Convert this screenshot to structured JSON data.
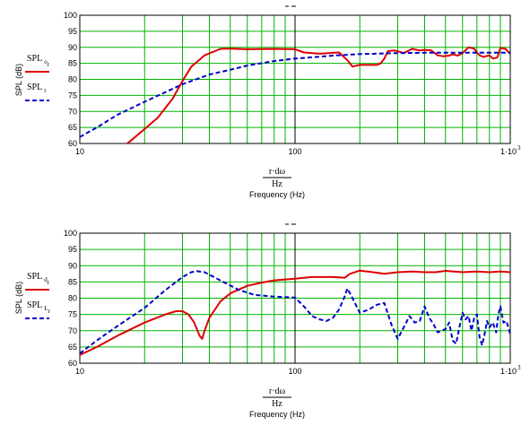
{
  "chart_data": [
    {
      "type": "line",
      "title": "",
      "xlabel": "Frequency (Hz)",
      "xexpr_num": "r·dω",
      "xexpr_den": "Hz",
      "ylabel": "SPL (dB)",
      "xscale": "log",
      "xlim": [
        10,
        1000
      ],
      "ylim": [
        60,
        100
      ],
      "grid": true,
      "yticks": [
        "60",
        "65",
        "70",
        "75",
        "80",
        "85",
        "90",
        "95",
        "100"
      ],
      "xticks": [
        "10",
        "100",
        "1·10"
      ],
      "xtick_exp": "3",
      "legend_position": "left",
      "series": [
        {
          "name": "SPL o",
          "name_base": "SPL",
          "name_sub": "o",
          "name_subsub": "r",
          "color": "#dd0000",
          "dash": "solid",
          "x": [
            10,
            15,
            17,
            20,
            23,
            27,
            30,
            33,
            38,
            45,
            50,
            60,
            80,
            100,
            110,
            130,
            160,
            175,
            185,
            200,
            210,
            240,
            250,
            260,
            270,
            290,
            310,
            320,
            350,
            380,
            400,
            430,
            460,
            490,
            520,
            540,
            570,
            600,
            640,
            680,
            700,
            720,
            750,
            800,
            830,
            870,
            900,
            950,
            1000
          ],
          "y": [
            52.5,
            58,
            60.5,
            64.5,
            68,
            74,
            79.5,
            84,
            87.5,
            89.5,
            89.6,
            89.4,
            89.5,
            89.4,
            88.4,
            88,
            88.4,
            86,
            84,
            84.5,
            84.5,
            84.5,
            85,
            86.5,
            88.8,
            89,
            88.5,
            88.2,
            89.5,
            89,
            89.2,
            89,
            87.5,
            87.2,
            87.4,
            87.8,
            87.4,
            88.2,
            90,
            89.6,
            88.3,
            87.5,
            87,
            87.5,
            86.5,
            86.8,
            89.8,
            89.5,
            88
          ]
        },
        {
          "name": "SPL r",
          "name_base": "SPL",
          "name_sub": "r",
          "name_subsub": "",
          "color": "#0000cc",
          "dash": "dashed",
          "x": [
            10,
            12,
            15,
            20,
            25,
            30,
            40,
            50,
            60,
            80,
            100,
            150,
            200,
            300,
            400,
            600,
            800,
            1000
          ],
          "y": [
            62,
            65,
            69,
            73,
            76,
            78.5,
            81.5,
            83,
            84.3,
            85.7,
            86.5,
            87.4,
            87.9,
            88.2,
            88.3,
            88.3,
            88.3,
            88.3
          ]
        }
      ]
    },
    {
      "type": "line",
      "title": "",
      "xlabel": "Frequency (Hz)",
      "xexpr_num": "r·dω",
      "xexpr_den": "Hz",
      "ylabel": "SPL (dB)",
      "xscale": "log",
      "xlim": [
        10,
        1000
      ],
      "ylim": [
        60,
        100
      ],
      "grid": true,
      "yticks": [
        "60",
        "65",
        "70",
        "75",
        "80",
        "85",
        "90",
        "95",
        "100"
      ],
      "xticks": [
        "10",
        "100",
        "1·10"
      ],
      "xtick_exp": "3",
      "legend_position": "left",
      "series": [
        {
          "name": "SPL d",
          "name_base": "SPL",
          "name_sub": "d",
          "name_subsub": "r",
          "color": "#dd0000",
          "dash": "solid",
          "x": [
            10,
            12,
            15,
            20,
            25,
            28,
            30,
            32,
            34,
            36,
            37,
            38,
            40,
            45,
            50,
            60,
            70,
            80,
            100,
            120,
            150,
            170,
            180,
            200,
            230,
            260,
            300,
            350,
            400,
            450,
            500,
            600,
            700,
            800,
            900,
            1000
          ],
          "y": [
            62.5,
            65,
            68.5,
            72.5,
            75,
            76,
            76,
            75,
            72.5,
            68.5,
            67.5,
            70,
            74,
            79,
            81.5,
            83.8,
            84.8,
            85.5,
            86,
            86.5,
            86.5,
            86.3,
            87.5,
            88.5,
            88,
            87.5,
            88,
            88.2,
            88,
            88,
            88.4,
            88,
            88.2,
            88,
            88.2,
            88
          ]
        },
        {
          "name": "SPL L",
          "name_base": "SPL",
          "name_sub": "L",
          "name_subsub": "r",
          "color": "#0000cc",
          "dash": "dashed",
          "x": [
            10,
            12,
            15,
            20,
            25,
            30,
            33,
            35,
            38,
            42,
            48,
            55,
            65,
            80,
            100,
            110,
            120,
            130,
            140,
            150,
            160,
            170,
            175,
            185,
            200,
            220,
            240,
            260,
            280,
            300,
            320,
            340,
            360,
            380,
            400,
            420,
            440,
            460,
            480,
            500,
            520,
            540,
            560,
            580,
            600,
            620,
            640,
            660,
            680,
            700,
            720,
            740,
            760,
            780,
            800,
            830,
            860,
            880,
            900,
            930,
            960,
            1000
          ],
          "y": [
            63,
            67,
            71.5,
            77,
            82.5,
            86.5,
            88,
            88.3,
            88,
            86.5,
            84.5,
            82.5,
            81,
            80.5,
            80.2,
            77.5,
            74.5,
            73.5,
            73,
            74,
            76.5,
            80.5,
            83,
            80,
            75.5,
            76.5,
            78,
            78.5,
            72,
            67.5,
            71,
            74.5,
            72.5,
            73,
            77.5,
            74,
            72,
            69.5,
            70,
            70.5,
            72.5,
            67,
            66,
            71,
            75.5,
            73.5,
            74.5,
            70,
            74,
            75,
            68,
            65.5,
            69,
            73,
            71,
            72.5,
            69.5,
            75,
            77.5,
            72.5,
            73,
            69
          ]
        }
      ]
    }
  ]
}
